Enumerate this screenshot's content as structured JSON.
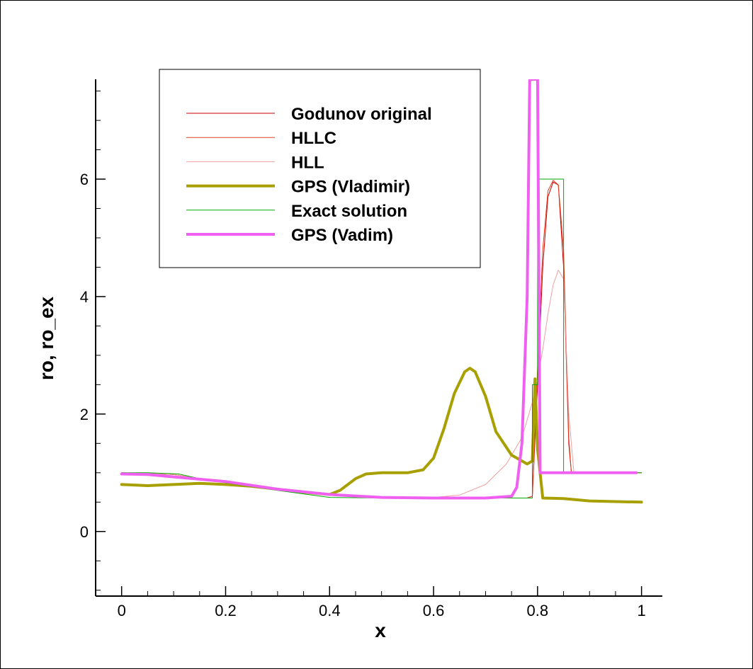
{
  "chart_data": {
    "type": "line",
    "xlabel": "x",
    "ylabel": "ro, ro_ex",
    "xlim": [
      -0.05,
      1.04
    ],
    "ylim": [
      -1.1,
      7.7
    ],
    "x_ticks": [
      "0",
      "0.2",
      "0.4",
      "0.6",
      "0.8",
      "1"
    ],
    "x_tick_values": [
      0,
      0.2,
      0.4,
      0.6,
      0.8,
      1.0
    ],
    "y_ticks": [
      "0",
      "2",
      "4",
      "6"
    ],
    "y_tick_values": [
      0,
      2,
      4,
      6
    ],
    "grid": false,
    "legend_position": "top-left",
    "series": [
      {
        "name": "Godunov original",
        "color": "#cc0000",
        "width": 1,
        "x": [
          0.0,
          0.1,
          0.2,
          0.3,
          0.4,
          0.5,
          0.6,
          0.7,
          0.78,
          0.79,
          0.8,
          0.81,
          0.82,
          0.83,
          0.84,
          0.85,
          0.86,
          0.865,
          0.9,
          1.0
        ],
        "y": [
          1.0,
          0.97,
          0.84,
          0.72,
          0.63,
          0.58,
          0.57,
          0.57,
          0.57,
          0.6,
          2.5,
          4.5,
          5.7,
          5.95,
          5.9,
          4.5,
          1.5,
          1.0,
          1.0,
          1.0
        ]
      },
      {
        "name": "HLLC",
        "color": "#e04020",
        "width": 1,
        "x": [
          0.0,
          0.1,
          0.2,
          0.3,
          0.4,
          0.5,
          0.6,
          0.7,
          0.78,
          0.79,
          0.8,
          0.81,
          0.82,
          0.83,
          0.84,
          0.85,
          0.86,
          0.865,
          0.9,
          1.0
        ],
        "y": [
          1.0,
          0.97,
          0.84,
          0.72,
          0.63,
          0.58,
          0.57,
          0.57,
          0.57,
          0.6,
          2.8,
          4.8,
          5.8,
          5.98,
          5.9,
          4.8,
          1.6,
          1.0,
          1.0,
          1.0
        ]
      },
      {
        "name": "HLL",
        "color": "#f0a0a0",
        "width": 1,
        "x": [
          0.0,
          0.1,
          0.2,
          0.3,
          0.4,
          0.5,
          0.6,
          0.65,
          0.7,
          0.74,
          0.77,
          0.79,
          0.8,
          0.81,
          0.82,
          0.83,
          0.84,
          0.85,
          0.86,
          0.87,
          0.9,
          1.0
        ],
        "y": [
          1.0,
          0.97,
          0.84,
          0.72,
          0.63,
          0.58,
          0.58,
          0.62,
          0.8,
          1.15,
          1.6,
          2.2,
          2.6,
          3.1,
          3.7,
          4.2,
          4.45,
          4.3,
          2.0,
          1.0,
          1.0,
          1.0
        ]
      },
      {
        "name": "GPS (Vladimir)",
        "color": "#a8a000",
        "width": 4,
        "x": [
          0.0,
          0.05,
          0.1,
          0.15,
          0.2,
          0.25,
          0.3,
          0.35,
          0.4,
          0.42,
          0.45,
          0.47,
          0.5,
          0.55,
          0.58,
          0.6,
          0.62,
          0.64,
          0.66,
          0.67,
          0.68,
          0.7,
          0.72,
          0.75,
          0.78,
          0.79,
          0.795,
          0.8,
          0.81,
          0.85,
          0.9,
          1.0
        ],
        "y": [
          0.8,
          0.78,
          0.8,
          0.82,
          0.8,
          0.77,
          0.72,
          0.67,
          0.63,
          0.7,
          0.9,
          0.98,
          1.0,
          1.0,
          1.05,
          1.25,
          1.75,
          2.35,
          2.72,
          2.78,
          2.72,
          2.3,
          1.7,
          1.3,
          1.15,
          1.2,
          2.6,
          1.4,
          0.57,
          0.56,
          0.52,
          0.5
        ]
      },
      {
        "name": "Exact solution",
        "color": "#00aa00",
        "width": 1,
        "x": [
          0.0,
          0.05,
          0.11,
          0.15,
          0.2,
          0.3,
          0.4,
          0.5,
          0.6,
          0.7,
          0.79,
          0.79,
          0.8,
          0.8,
          0.83,
          0.83,
          0.85,
          0.85,
          0.9,
          1.0
        ],
        "y": [
          1.0,
          1.0,
          0.98,
          0.9,
          0.83,
          0.7,
          0.58,
          0.57,
          0.57,
          0.57,
          0.57,
          2.5,
          2.5,
          6.0,
          6.0,
          6.0,
          6.0,
          1.0,
          1.0,
          1.0
        ]
      },
      {
        "name": "GPS (Vadim)",
        "color": "#f060f0",
        "width": 4,
        "x": [
          0.0,
          0.05,
          0.1,
          0.2,
          0.3,
          0.4,
          0.5,
          0.6,
          0.7,
          0.75,
          0.76,
          0.77,
          0.78,
          0.785,
          0.79,
          0.795,
          0.8,
          0.805,
          0.81,
          0.9,
          0.99
        ],
        "y": [
          0.98,
          0.97,
          0.93,
          0.85,
          0.72,
          0.63,
          0.58,
          0.57,
          0.57,
          0.6,
          0.75,
          1.5,
          4.0,
          7.7,
          7.7,
          7.7,
          7.7,
          1.0,
          1.0,
          1.0,
          1.0
        ]
      }
    ]
  }
}
